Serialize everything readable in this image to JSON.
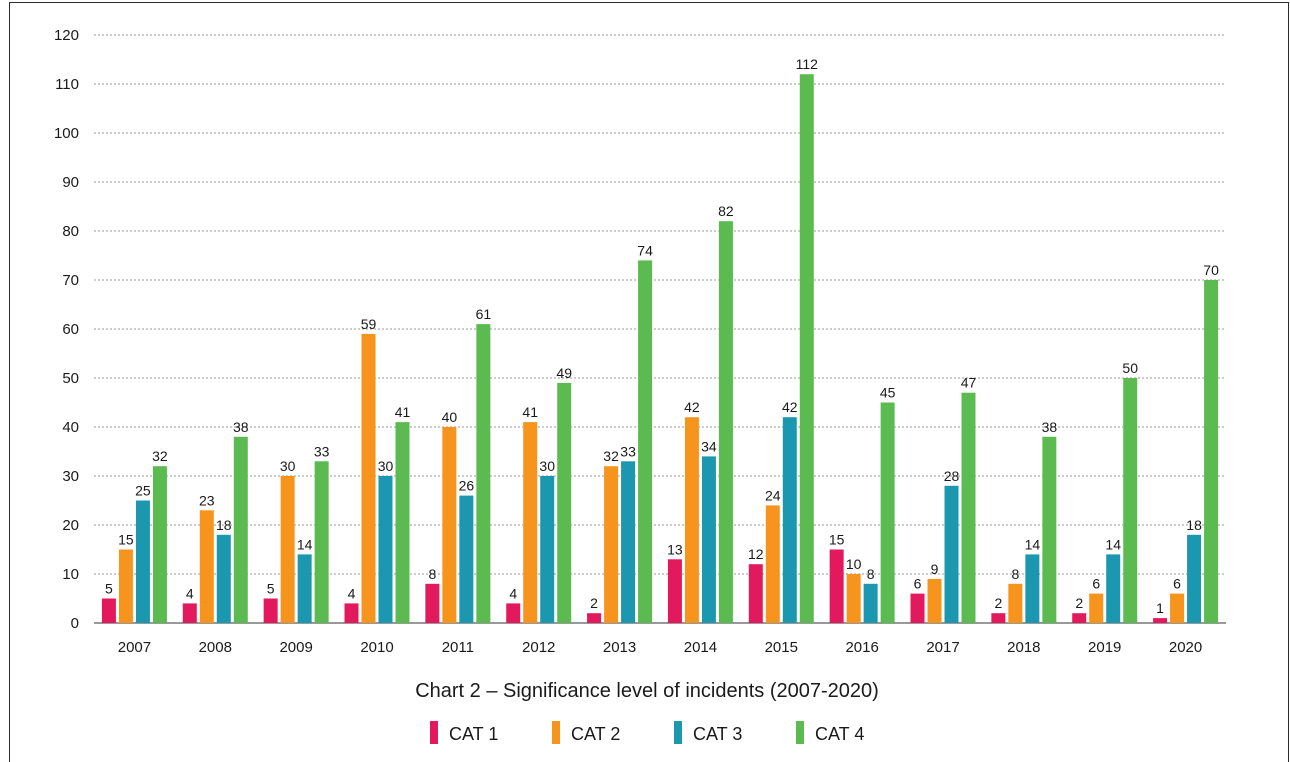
{
  "chart_data": {
    "type": "bar",
    "title": "Chart 2 – Significance level of incidents (2007-2020)",
    "xlabel": "",
    "ylabel": "",
    "ylim": [
      0,
      120
    ],
    "yticks": [
      0,
      10,
      20,
      30,
      40,
      50,
      60,
      70,
      80,
      90,
      100,
      110,
      120
    ],
    "grid": true,
    "legend_position": "bottom",
    "categories": [
      "2007",
      "2008",
      "2009",
      "2010",
      "2011",
      "2012",
      "2013",
      "2014",
      "2015",
      "2016",
      "2017",
      "2018",
      "2019",
      "2020"
    ],
    "series": [
      {
        "name": "CAT 1",
        "color": "#e3195e",
        "values": [
          5,
          4,
          5,
          4,
          8,
          4,
          2,
          13,
          12,
          15,
          6,
          2,
          2,
          1
        ]
      },
      {
        "name": "CAT 2",
        "color": "#f7941d",
        "values": [
          15,
          23,
          30,
          59,
          40,
          41,
          32,
          42,
          24,
          10,
          9,
          8,
          6,
          6
        ]
      },
      {
        "name": "CAT 3",
        "color": "#1b97b0",
        "values": [
          25,
          18,
          14,
          30,
          26,
          30,
          33,
          34,
          42,
          8,
          28,
          14,
          14,
          18
        ]
      },
      {
        "name": "CAT 4",
        "color": "#5cbb50",
        "values": [
          32,
          38,
          33,
          41,
          61,
          49,
          74,
          82,
          112,
          45,
          47,
          38,
          50,
          70
        ]
      }
    ]
  }
}
